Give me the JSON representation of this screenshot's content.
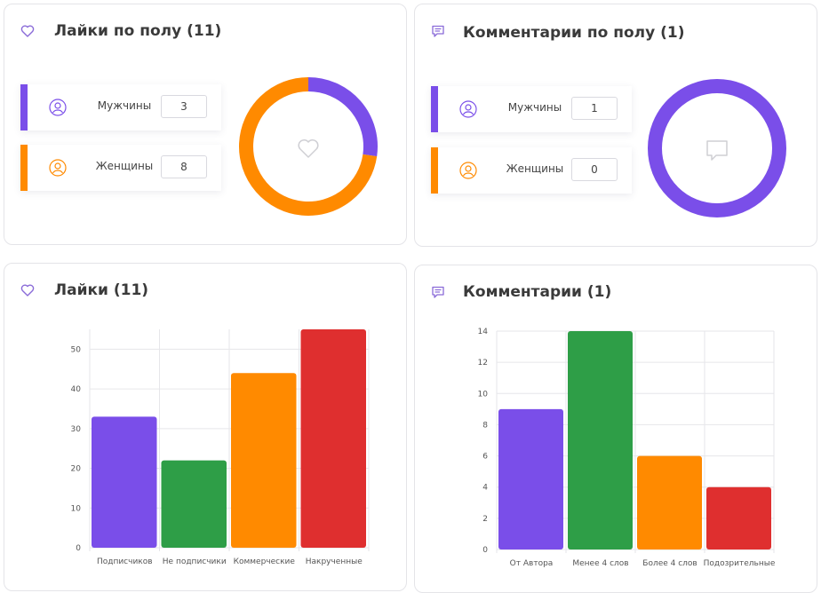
{
  "colors": {
    "purple": "#7a4ee9",
    "orange": "#ff8a00",
    "green": "#2e9e47",
    "red": "#df2f2f",
    "icon": "#8a6bd8"
  },
  "cards": {
    "likes_gender": {
      "title": "Лайки по полу (11)",
      "icon": "heart-icon",
      "rows": [
        {
          "label": "Мужчины",
          "value": "3",
          "color": "#7a4ee9"
        },
        {
          "label": "Женщины",
          "value": "8",
          "color": "#ff8a00"
        }
      ],
      "center_icon": "heart-icon"
    },
    "comments_gender": {
      "title": "Комментарии по полу (1)",
      "icon": "comment-icon",
      "rows": [
        {
          "label": "Мужчины",
          "value": "1",
          "color": "#7a4ee9"
        },
        {
          "label": "Женщины",
          "value": "0",
          "color": "#ff8a00"
        }
      ],
      "center_icon": "comment-icon"
    },
    "likes_chart": {
      "title": "Лайки (11)",
      "icon": "heart-icon"
    },
    "comments_chart": {
      "title": "Комментарии (1)",
      "icon": "comment-icon"
    }
  },
  "chart_data": [
    {
      "type": "pie",
      "categories": [
        "Мужчины",
        "Женщины"
      ],
      "values": [
        3,
        8
      ],
      "colors": [
        "#7a4ee9",
        "#ff8a00"
      ]
    },
    {
      "type": "pie",
      "categories": [
        "Мужчины",
        "Женщины"
      ],
      "values": [
        1,
        0
      ],
      "colors": [
        "#7a4ee9",
        "#ff8a00"
      ]
    },
    {
      "type": "bar",
      "categories": [
        "Подписчиков",
        "Не подписчики",
        "Коммерческие",
        "Накрученные"
      ],
      "values": [
        33,
        22,
        44,
        55
      ],
      "colors": [
        "#7a4ee9",
        "#2e9e47",
        "#ff8a00",
        "#df2f2f"
      ],
      "ylim": [
        0,
        55
      ],
      "yticks": [
        0,
        10,
        20,
        30,
        40,
        50
      ],
      "grid": true
    },
    {
      "type": "bar",
      "categories": [
        "От Автора",
        "Менее 4 слов",
        "Более 4 слов",
        "Подозрительные"
      ],
      "values": [
        9,
        14,
        6,
        4
      ],
      "colors": [
        "#7a4ee9",
        "#2e9e47",
        "#ff8a00",
        "#df2f2f"
      ],
      "ylim": [
        0,
        14
      ],
      "yticks": [
        0,
        2,
        4,
        6,
        8,
        10,
        12,
        14
      ],
      "grid": true
    }
  ]
}
